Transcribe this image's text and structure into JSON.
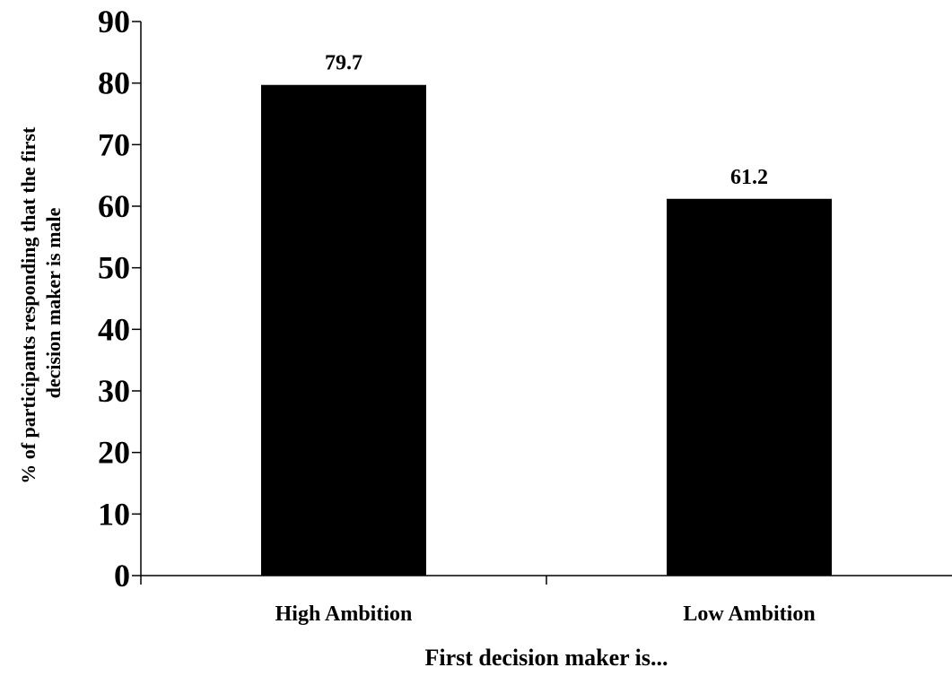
{
  "chart_data": {
    "type": "bar",
    "categories": [
      "High Ambition",
      "Low Ambition"
    ],
    "values": [
      79.7,
      61.2
    ],
    "data_labels": [
      "79.7",
      "61.2"
    ],
    "xlabel": "First decision maker is...",
    "ylabel": [
      "% of participants responding that the first",
      "decision maker is male"
    ],
    "ylim": [
      0,
      90
    ],
    "yticks": [
      "0",
      "10",
      "20",
      "30",
      "40",
      "50",
      "60",
      "70",
      "80",
      "90"
    ],
    "bar_color": "#000000",
    "grid": false,
    "legend": "none"
  }
}
